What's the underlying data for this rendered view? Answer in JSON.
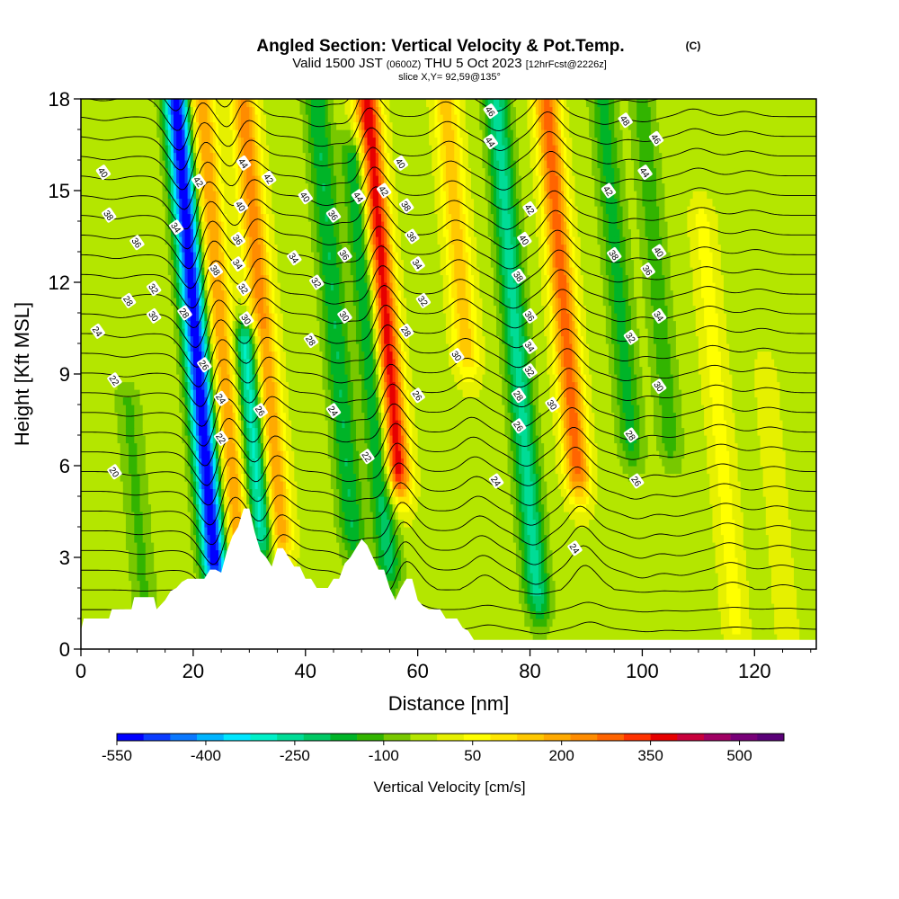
{
  "chart_data": {
    "type": "heatmap",
    "title": "Angled Section: Vertical Velocity & Pot.Temp.",
    "title_mark": "(C)",
    "subtitle_main_a": "Valid 1500 JST",
    "subtitle_small_a": "(0600Z)",
    "subtitle_main_b": "THU 5 Oct 2023",
    "subtitle_small_b": "[12hrFcst@2226z]",
    "subtitle_line2": "slice X,Y= 92,59@135°",
    "xlabel": "Distance [nm]",
    "ylabel": "Height [Kft MSL]",
    "xlim": [
      0,
      131
    ],
    "ylim": [
      0,
      18
    ],
    "x_ticks": [
      "0",
      "20",
      "40",
      "60",
      "80",
      "100",
      "120"
    ],
    "y_ticks": [
      "0",
      "3",
      "6",
      "9",
      "12",
      "15",
      "18"
    ],
    "colorbar": {
      "label": "Vertical Velocity [cm/s]",
      "tick_labels": [
        "-550",
        "-400",
        "-250",
        "-100",
        "50",
        "200",
        "350",
        "500"
      ],
      "range": [
        -550,
        575
      ],
      "step": 50,
      "colors": [
        "#0000ff",
        "#0a3cff",
        "#0a78ff",
        "#00b4ff",
        "#00e6ff",
        "#00f0c8",
        "#00dc96",
        "#00c864",
        "#00b428",
        "#32b400",
        "#78c800",
        "#b4e600",
        "#e6f000",
        "#ffff00",
        "#ffe600",
        "#ffc800",
        "#ffaa00",
        "#ff8c00",
        "#ff6400",
        "#ff3200",
        "#e60000",
        "#c8003c",
        "#a00064",
        "#780078",
        "#5a0078"
      ]
    },
    "vertical_velocity_cross_section": {
      "background_cm_s": 30,
      "features": [
        {
          "x_nm": 21,
          "top_kft": 18,
          "base_kft": 3.0,
          "peak_cm_s": -550
        },
        {
          "x_nm": 25.5,
          "top_kft": 18,
          "base_kft": 4.0,
          "peak_cm_s": 300
        },
        {
          "x_nm": 33,
          "top_kft": 18,
          "base_kft": 4.0,
          "peak_cm_s": 330
        },
        {
          "x_nm": 30,
          "top_kft": 10,
          "base_kft": 4.0,
          "peak_cm_s": -300
        },
        {
          "x_nm": 46,
          "top_kft": 18,
          "base_kft": 4.0,
          "peak_cm_s": -150
        },
        {
          "x_nm": 55,
          "top_kft": 18,
          "base_kft": 6.0,
          "peak_cm_s": 500
        },
        {
          "x_nm": 52,
          "top_kft": 16,
          "base_kft": 3.0,
          "peak_cm_s": -180
        },
        {
          "x_nm": 69,
          "top_kft": 18,
          "base_kft": 10.0,
          "peak_cm_s": 230
        },
        {
          "x_nm": 78,
          "top_kft": 18,
          "base_kft": 2.0,
          "peak_cm_s": -220
        },
        {
          "x_nm": 87,
          "top_kft": 18,
          "base_kft": 6.0,
          "peak_cm_s": 380
        },
        {
          "x_nm": 97,
          "top_kft": 18,
          "base_kft": 7.0,
          "peak_cm_s": -120
        },
        {
          "x_nm": 104,
          "top_kft": 18,
          "base_kft": 7.0,
          "peak_cm_s": -80
        },
        {
          "x_nm": 113,
          "top_kft": 14,
          "base_kft": 1.0,
          "peak_cm_s": 120
        },
        {
          "x_nm": 122,
          "top_kft": 9,
          "base_kft": 0.5,
          "peak_cm_s": 80
        },
        {
          "x_nm": 8,
          "top_kft": 8,
          "base_kft": 1.0,
          "peak_cm_s": -60
        }
      ]
    },
    "potential_temperature_contours": {
      "units": "°C",
      "interval": 1,
      "levels_range": [
        19,
        48
      ],
      "labels": [
        {
          "text": "40",
          "x": 4,
          "y": 15.6
        },
        {
          "text": "38",
          "x": 5,
          "y": 14.2
        },
        {
          "text": "36",
          "x": 10,
          "y": 13.3
        },
        {
          "text": "34",
          "x": 17,
          "y": 13.8
        },
        {
          "text": "32",
          "x": 13,
          "y": 11.8
        },
        {
          "text": "30",
          "x": 13,
          "y": 10.9
        },
        {
          "text": "28",
          "x": 8.5,
          "y": 11.4
        },
        {
          "text": "28",
          "x": 18.5,
          "y": 11.0
        },
        {
          "text": "24",
          "x": 3,
          "y": 10.4
        },
        {
          "text": "22",
          "x": 6,
          "y": 8.8
        },
        {
          "text": "20",
          "x": 6,
          "y": 5.8
        },
        {
          "text": "42",
          "x": 21,
          "y": 15.3
        },
        {
          "text": "38",
          "x": 24,
          "y": 12.4
        },
        {
          "text": "26",
          "x": 22,
          "y": 9.3
        },
        {
          "text": "24",
          "x": 25,
          "y": 8.2
        },
        {
          "text": "22",
          "x": 25,
          "y": 6.9
        },
        {
          "text": "44",
          "x": 29,
          "y": 15.9
        },
        {
          "text": "40",
          "x": 28.5,
          "y": 14.5
        },
        {
          "text": "36",
          "x": 28,
          "y": 13.4
        },
        {
          "text": "34",
          "x": 28,
          "y": 12.6
        },
        {
          "text": "32",
          "x": 29,
          "y": 11.8
        },
        {
          "text": "30",
          "x": 29.5,
          "y": 10.8
        },
        {
          "text": "26",
          "x": 32,
          "y": 7.8
        },
        {
          "text": "42",
          "x": 33.5,
          "y": 15.4
        },
        {
          "text": "40",
          "x": 40,
          "y": 14.8
        },
        {
          "text": "34",
          "x": 38,
          "y": 12.8
        },
        {
          "text": "32",
          "x": 42,
          "y": 12.0
        },
        {
          "text": "28",
          "x": 41,
          "y": 10.1
        },
        {
          "text": "24",
          "x": 45,
          "y": 7.8
        },
        {
          "text": "22",
          "x": 51,
          "y": 6.3
        },
        {
          "text": "36",
          "x": 45,
          "y": 14.2
        },
        {
          "text": "36",
          "x": 47,
          "y": 12.9
        },
        {
          "text": "30",
          "x": 47,
          "y": 10.9
        },
        {
          "text": "44",
          "x": 49.5,
          "y": 14.8
        },
        {
          "text": "42",
          "x": 54,
          "y": 15.0
        },
        {
          "text": "40",
          "x": 57,
          "y": 15.9
        },
        {
          "text": "38",
          "x": 58,
          "y": 14.5
        },
        {
          "text": "36",
          "x": 59,
          "y": 13.5
        },
        {
          "text": "34",
          "x": 60,
          "y": 12.6
        },
        {
          "text": "32",
          "x": 61,
          "y": 11.4
        },
        {
          "text": "28",
          "x": 58,
          "y": 10.4
        },
        {
          "text": "26",
          "x": 60,
          "y": 8.3
        },
        {
          "text": "30",
          "x": 67,
          "y": 9.6
        },
        {
          "text": "46",
          "x": 73,
          "y": 17.6
        },
        {
          "text": "44",
          "x": 73,
          "y": 16.6
        },
        {
          "text": "24",
          "x": 74,
          "y": 5.5
        },
        {
          "text": "42",
          "x": 80,
          "y": 14.4
        },
        {
          "text": "40",
          "x": 79,
          "y": 13.4
        },
        {
          "text": "38",
          "x": 78,
          "y": 12.2
        },
        {
          "text": "36",
          "x": 80,
          "y": 10.9
        },
        {
          "text": "34",
          "x": 80,
          "y": 9.9
        },
        {
          "text": "32",
          "x": 80,
          "y": 9.1
        },
        {
          "text": "28",
          "x": 78,
          "y": 8.3
        },
        {
          "text": "26",
          "x": 78,
          "y": 7.3
        },
        {
          "text": "30",
          "x": 84,
          "y": 8.0
        },
        {
          "text": "24",
          "x": 88,
          "y": 3.3
        },
        {
          "text": "48",
          "x": 97,
          "y": 17.3
        },
        {
          "text": "46",
          "x": 102.5,
          "y": 16.7
        },
        {
          "text": "44",
          "x": 100.5,
          "y": 15.6
        },
        {
          "text": "42",
          "x": 94,
          "y": 15.0
        },
        {
          "text": "40",
          "x": 103,
          "y": 13.0
        },
        {
          "text": "38",
          "x": 95,
          "y": 12.9
        },
        {
          "text": "36",
          "x": 101,
          "y": 12.4
        },
        {
          "text": "34",
          "x": 103,
          "y": 10.9
        },
        {
          "text": "32",
          "x": 98,
          "y": 10.2
        },
        {
          "text": "30",
          "x": 103,
          "y": 8.6
        },
        {
          "text": "28",
          "x": 98,
          "y": 7.0
        },
        {
          "text": "26",
          "x": 99,
          "y": 5.5
        }
      ]
    },
    "terrain_kft": {
      "x": [
        0,
        0.5,
        5,
        5.5,
        9,
        9.5,
        13,
        13.5,
        15,
        16,
        17,
        18,
        19,
        20,
        21,
        22,
        23,
        24,
        25,
        26,
        27,
        28,
        29,
        30,
        31,
        32,
        33,
        34,
        35,
        36,
        37,
        38,
        39,
        40,
        41,
        42,
        43,
        44,
        45,
        46,
        47,
        48,
        49,
        50,
        51,
        52,
        53,
        54,
        55,
        56,
        57,
        58,
        59,
        60,
        61,
        62,
        63,
        64,
        65,
        66,
        67,
        68,
        69,
        70,
        131
      ],
      "h": [
        0.6,
        1.0,
        1.0,
        1.3,
        1.3,
        1.7,
        1.7,
        1.3,
        1.6,
        1.9,
        2.0,
        2.2,
        2.3,
        2.3,
        2.3,
        2.3,
        2.6,
        2.6,
        2.5,
        3.2,
        3.7,
        4.0,
        4.6,
        4.6,
        3.8,
        3.2,
        3.0,
        2.7,
        3.3,
        3.3,
        3.0,
        2.7,
        2.7,
        2.3,
        2.3,
        2.0,
        2.0,
        2.0,
        2.3,
        2.3,
        2.8,
        3.0,
        3.3,
        3.6,
        3.4,
        3.0,
        2.6,
        2.6,
        2.0,
        1.6,
        2.0,
        2.3,
        2.3,
        1.6,
        1.4,
        1.3,
        1.3,
        1.3,
        1.0,
        1.0,
        1.0,
        0.7,
        0.6,
        0.3,
        0.3
      ]
    }
  }
}
